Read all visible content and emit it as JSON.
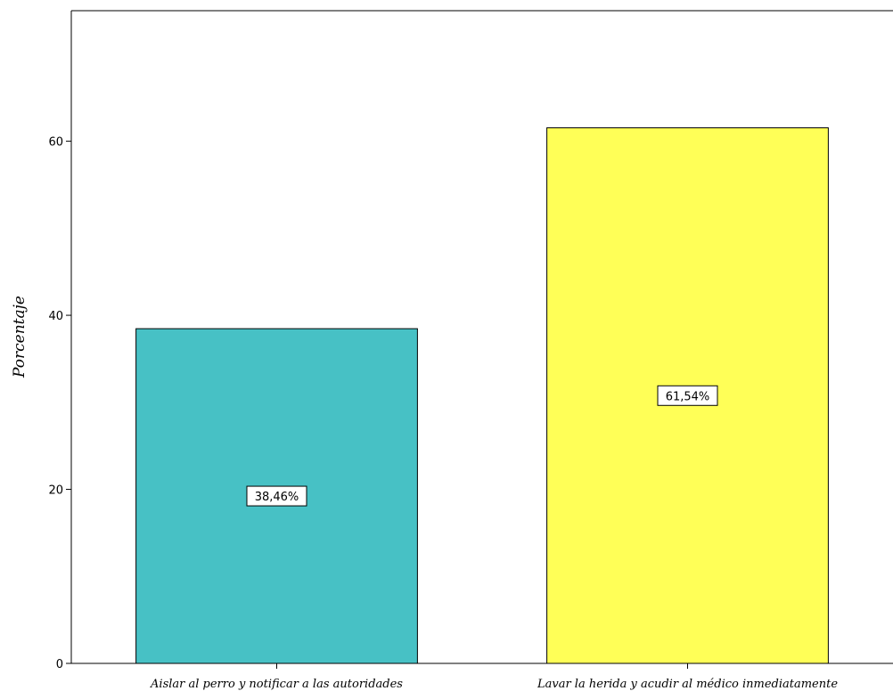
{
  "chart_data": {
    "type": "bar",
    "categories": [
      "Aislar al perro y notificar a las autoridades",
      "Lavar la herida y acudir al médico inmediatamente"
    ],
    "values": [
      38.46,
      61.54
    ],
    "data_labels": [
      "38,46%",
      "61,54%"
    ],
    "bar_colors": [
      "#47c1c5",
      "#ffff57"
    ],
    "title": "",
    "xlabel": "",
    "ylabel": "Porcentaje",
    "ylim": [
      0,
      75
    ],
    "yticks": [
      0,
      20,
      40,
      60
    ],
    "ytick_labels": [
      "0",
      "20",
      "40",
      "60"
    ],
    "grid": false,
    "legend": "none"
  }
}
